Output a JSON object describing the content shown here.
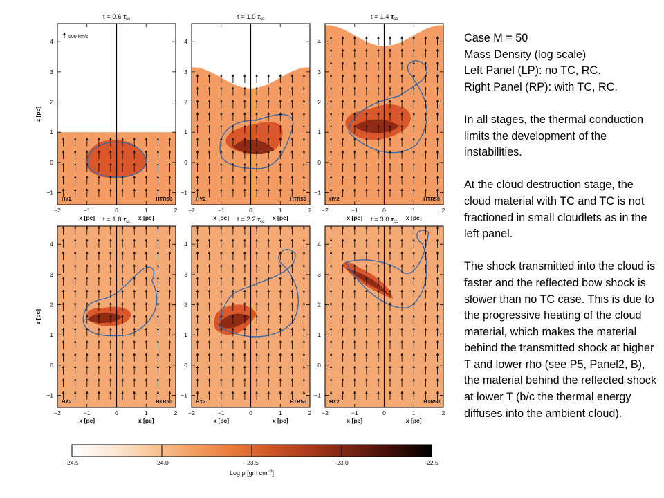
{
  "figure": {
    "rows": [
      {
        "panels": [
          {
            "time": "0.6"
          },
          {
            "time": "1.0"
          },
          {
            "time": "1.4"
          }
        ]
      },
      {
        "panels": [
          {
            "time": "1.8"
          },
          {
            "time": "2.2"
          },
          {
            "time": "3.0"
          }
        ]
      }
    ],
    "time_prefix": "t = ",
    "time_symbol": "τ",
    "time_subscript": "cc",
    "left_tag": "HY2",
    "right_tag": "HTR50",
    "xlabel": "x [pc]",
    "ylabel": "z [pc]",
    "x_ticks": [
      "−2",
      "−1",
      "0",
      "1",
      "2"
    ],
    "y_ticks": [
      "4",
      "3",
      "2",
      "1",
      "0",
      "−1"
    ],
    "velocity_key": "500 km/s",
    "colorbar": {
      "ticks": [
        "-24.5",
        "-24.0",
        "-23.5",
        "-23.0",
        "-22.5"
      ],
      "label": "Log ρ [gm cm",
      "label_sup": "−3",
      "label_end": "]",
      "colors": [
        "#ffffff",
        "#fde9d8",
        "#f8c79a",
        "#f3a064",
        "#e97b3c",
        "#cc5526",
        "#a8391c",
        "#772312",
        "#3e0d07",
        "#000000"
      ]
    },
    "palette": {
      "ambient": "#f39c63",
      "wind": "#f7b88a",
      "cloud": "#d9572a",
      "core": "#8f2a14",
      "contour": "#3b6aa8"
    }
  },
  "notes": {
    "p1_line1": "Case M = 50",
    "p1_line2": "Mass Density (log scale)",
    "p1_line3": "Left Panel (LP): no TC, RC.",
    "p1_line4": "Right Panel (RP): with TC, RC.",
    "p2": "In all stages, the thermal conduction limits the development of the instabilities.",
    "p3": "At the  cloud destruction stage, the cloud material with TC and TC is not fractioned in small cloudlets as in the left panel.",
    "p4": "The shock transmitted into the cloud is faster and the reflected bow shock is slower than no TC case. This is due to the progressive heating of the cloud material, which makes the material behind the transmitted shock at higher T and lower rho (see P5, Panel2, B), the material behind the reflected shock at lower T (b/c the thermal energy diffuses into the ambient cloud)."
  }
}
